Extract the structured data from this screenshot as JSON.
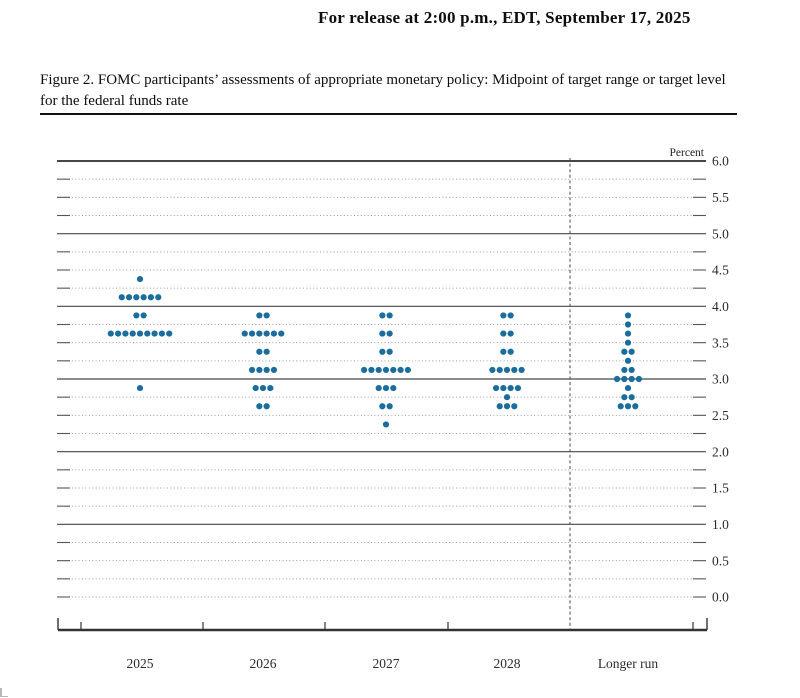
{
  "page": {
    "release_line": "For release at 2:00 p.m., EDT, September 17, 2025",
    "figure_caption": "Figure 2. FOMC participants’ assessments of appropriate monetary policy: Midpoint of target range or target level for the federal funds rate"
  },
  "chart_data": {
    "type": "scatter",
    "subtype": "fomc-dot-plot",
    "title": "Figure 2. FOMC participants’ assessments of appropriate monetary policy: Midpoint of target range or target level for the federal funds rate",
    "unit_label": "Percent",
    "xlabel": "",
    "ylabel": "Percent",
    "ylim": [
      0.0,
      6.0
    ],
    "y_minor_step": 0.25,
    "y_label_step": 0.5,
    "y_tick_labels": [
      "6.0",
      "5.5",
      "5.0",
      "4.5",
      "4.0",
      "3.5",
      "3.0",
      "2.5",
      "2.0",
      "1.5",
      "1.0",
      "0.5",
      "0.0"
    ],
    "grid": {
      "minor": "dotted",
      "major": "solid"
    },
    "legend": "none",
    "dot_color": "#1b6d9e",
    "participants_per_column": 19,
    "categories": [
      "2025",
      "2026",
      "2027",
      "2028",
      "Longer run"
    ],
    "separator_before_category": "Longer run",
    "series": [
      {
        "category": "2025",
        "dots": [
          {
            "midpoint": 4.375,
            "count": 1
          },
          {
            "midpoint": 4.125,
            "count": 6
          },
          {
            "midpoint": 3.875,
            "count": 2
          },
          {
            "midpoint": 3.625,
            "count": 9
          },
          {
            "midpoint": 2.875,
            "count": 1
          }
        ]
      },
      {
        "category": "2026",
        "dots": [
          {
            "midpoint": 3.875,
            "count": 2
          },
          {
            "midpoint": 3.625,
            "count": 6
          },
          {
            "midpoint": 3.375,
            "count": 2
          },
          {
            "midpoint": 3.125,
            "count": 4
          },
          {
            "midpoint": 2.875,
            "count": 3
          },
          {
            "midpoint": 2.625,
            "count": 2
          }
        ]
      },
      {
        "category": "2027",
        "dots": [
          {
            "midpoint": 3.875,
            "count": 2
          },
          {
            "midpoint": 3.625,
            "count": 2
          },
          {
            "midpoint": 3.375,
            "count": 2
          },
          {
            "midpoint": 3.125,
            "count": 7
          },
          {
            "midpoint": 2.875,
            "count": 3
          },
          {
            "midpoint": 2.625,
            "count": 2
          },
          {
            "midpoint": 2.375,
            "count": 1
          }
        ]
      },
      {
        "category": "2028",
        "dots": [
          {
            "midpoint": 3.875,
            "count": 2
          },
          {
            "midpoint": 3.625,
            "count": 2
          },
          {
            "midpoint": 3.375,
            "count": 2
          },
          {
            "midpoint": 3.125,
            "count": 5
          },
          {
            "midpoint": 2.875,
            "count": 4
          },
          {
            "midpoint": 2.75,
            "count": 1
          },
          {
            "midpoint": 2.625,
            "count": 3
          }
        ]
      },
      {
        "category": "Longer run",
        "dots": [
          {
            "midpoint": 3.875,
            "count": 1
          },
          {
            "midpoint": 3.75,
            "count": 1
          },
          {
            "midpoint": 3.625,
            "count": 1
          },
          {
            "midpoint": 3.5,
            "count": 1
          },
          {
            "midpoint": 3.375,
            "count": 2
          },
          {
            "midpoint": 3.25,
            "count": 1
          },
          {
            "midpoint": 3.125,
            "count": 2
          },
          {
            "midpoint": 3.0,
            "count": 4
          },
          {
            "midpoint": 2.875,
            "count": 1
          },
          {
            "midpoint": 2.75,
            "count": 2
          },
          {
            "midpoint": 2.625,
            "count": 3
          }
        ]
      }
    ]
  }
}
